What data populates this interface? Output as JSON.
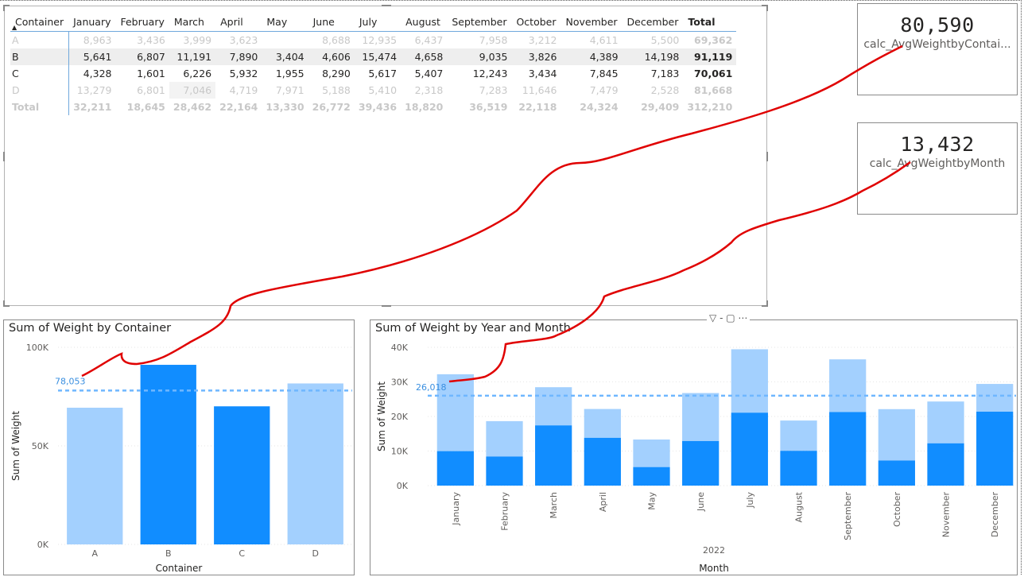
{
  "matrix": {
    "headers": [
      "Container",
      "January",
      "February",
      "March",
      "April",
      "May",
      "June",
      "July",
      "August",
      "September",
      "October",
      "November",
      "December",
      "Total"
    ],
    "rows": [
      {
        "name": "A",
        "values": [
          "8,963",
          "3,436",
          "3,999",
          "3,623",
          "",
          "8,688",
          "12,935",
          "6,437",
          "7,958",
          "3,212",
          "4,611",
          "5,500"
        ],
        "total": "69,362",
        "style": "dim"
      },
      {
        "name": "B",
        "values": [
          "5,641",
          "6,807",
          "11,191",
          "7,890",
          "3,404",
          "4,606",
          "15,474",
          "4,658",
          "9,035",
          "3,826",
          "4,389",
          "14,198"
        ],
        "total": "91,119",
        "style": "sel rowB"
      },
      {
        "name": "C",
        "values": [
          "4,328",
          "1,601",
          "6,226",
          "5,932",
          "1,955",
          "8,290",
          "5,617",
          "5,407",
          "12,243",
          "3,434",
          "7,845",
          "7,183"
        ],
        "total": "70,061",
        "style": "sel"
      },
      {
        "name": "D",
        "values": [
          "13,279",
          "6,801",
          "7,046",
          "4,719",
          "7,971",
          "5,188",
          "5,410",
          "2,318",
          "7,283",
          "11,646",
          "7,479",
          "2,528"
        ],
        "total": "81,668",
        "style": "dim"
      }
    ],
    "total_row": {
      "name": "Total",
      "values": [
        "32,211",
        "18,645",
        "28,462",
        "22,164",
        "13,330",
        "26,772",
        "39,436",
        "18,820",
        "36,519",
        "22,118",
        "24,324",
        "29,409"
      ],
      "total": "312,210"
    }
  },
  "cards": {
    "avg_by_container": {
      "value": "80,590",
      "label": "calc_AvgWeightbyContai..."
    },
    "avg_by_month": {
      "value": "13,432",
      "label": "calc_AvgWeightbyMonth"
    }
  },
  "chart_data": [
    {
      "type": "bar",
      "title": "Sum of Weight by Container",
      "xlabel": "Container",
      "ylabel": "Sum of Weight",
      "categories": [
        "A",
        "B",
        "C",
        "D"
      ],
      "values": [
        69362,
        91119,
        70061,
        81668
      ],
      "highlighted": [
        false,
        true,
        true,
        false
      ],
      "ylim": [
        0,
        100000
      ],
      "yticks": [
        "0K",
        "50K",
        "100K"
      ],
      "yticks_values": [
        0,
        50000,
        100000
      ],
      "reference_line": {
        "value": 78053,
        "label": "78,053"
      },
      "colors": {
        "selected": "#118dff",
        "unselected": "#a3d0fe",
        "refline": "#6fb7ff"
      }
    },
    {
      "type": "bar",
      "title": "Sum of Weight by Year and Month",
      "xlabel": "Month",
      "ylabel": "Sum of Weight",
      "group_label": "2022",
      "categories": [
        "January",
        "February",
        "March",
        "April",
        "May",
        "June",
        "July",
        "August",
        "September",
        "October",
        "November",
        "December"
      ],
      "series": [
        {
          "values": [
            9969,
            8408,
            17417,
            13822,
            5359,
            12896,
            21091,
            10065,
            21278,
            7260,
            12234,
            21381
          ]
        },
        {
          "values": [
            32211,
            18645,
            28462,
            22164,
            13330,
            26772,
            39436,
            18820,
            36519,
            22118,
            24324,
            29409
          ]
        }
      ],
      "ylim": [
        0,
        40000
      ],
      "yticks": [
        "0K",
        "10K",
        "20K",
        "30K",
        "40K"
      ],
      "yticks_values": [
        0,
        10000,
        20000,
        30000,
        40000
      ],
      "reference_line": {
        "value": 26018,
        "label": "26,018"
      },
      "colors": {
        "selected": "#118dff",
        "unselected": "#a3d0fe",
        "refline": "#6fb7ff"
      }
    }
  ],
  "toolbar": {
    "icons": [
      "filter-icon",
      "focus-mode-icon",
      "more-options-icon"
    ],
    "text": "▽ - ⤢ ⋯"
  },
  "annotation_color": "#e00000"
}
